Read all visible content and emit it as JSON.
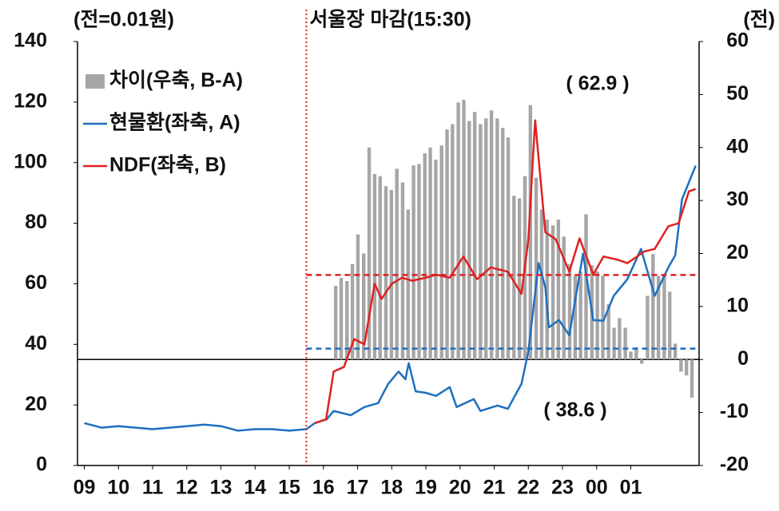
{
  "chart_data": {
    "type": "bar-line",
    "y_unit_label": "(전=0.01원)",
    "y2_unit_label": "(전)",
    "close_annotation": {
      "x": 15.5,
      "label": "서울장 마감(15:30)",
      "color": "#f0954a"
    },
    "xlim": [
      8.8,
      27.0
    ],
    "xticks": [
      {
        "value": 9,
        "label": "09"
      },
      10,
      11,
      12,
      13,
      14,
      15,
      16,
      17,
      18,
      19,
      20,
      21,
      22,
      23,
      {
        "value": 24,
        "label": "00"
      },
      {
        "value": 25,
        "label": "01"
      }
    ],
    "ylim": [
      0,
      140
    ],
    "yticks": [
      0,
      20,
      40,
      60,
      80,
      100,
      120,
      140
    ],
    "y2lim": [
      -20,
      60
    ],
    "y2ticks": [
      -20,
      -10,
      0,
      10,
      20,
      30,
      40,
      50,
      60
    ],
    "reference_lines": [
      {
        "value": 62.9,
        "label": "( 62.9 )",
        "color": "#e02020"
      },
      {
        "value": 38.6,
        "label": "( 38.6 )",
        "color": "#1e6fc0"
      }
    ],
    "series": [
      {
        "name": "차이(우축, B-A)",
        "kind": "bar",
        "axis": "y2",
        "color": "#a6a6a6",
        "x": [
          16.36,
          16.52,
          16.69,
          16.85,
          17.01,
          17.18,
          17.34,
          17.5,
          17.66,
          17.83,
          17.99,
          18.15,
          18.32,
          18.48,
          18.64,
          18.8,
          18.97,
          19.13,
          19.29,
          19.46,
          19.62,
          19.78,
          19.95,
          20.11,
          20.27,
          20.43,
          20.6,
          20.76,
          20.92,
          21.09,
          21.25,
          21.41,
          21.58,
          21.74,
          21.9,
          22.06,
          22.23,
          22.39,
          22.55,
          22.72,
          22.88,
          23.04,
          23.21,
          23.37,
          23.53,
          23.69,
          23.86,
          24.02,
          24.18,
          24.35,
          24.51,
          24.67,
          24.84,
          25.0,
          25.16,
          25.32,
          25.49,
          25.65,
          25.81,
          25.98,
          26.14,
          26.3,
          26.47,
          26.63,
          26.79
        ],
        "values": [
          13.9,
          15.4,
          14.8,
          18,
          23.6,
          20,
          40,
          35,
          34.6,
          32.7,
          32,
          36,
          33.4,
          28.3,
          36.6,
          36.9,
          38.9,
          40,
          37.7,
          40.4,
          43.4,
          44.4,
          48.5,
          49,
          45,
          46.7,
          44.4,
          45.5,
          47,
          45.5,
          43.7,
          41.9,
          30.9,
          30.4,
          34.6,
          48,
          34.3,
          28.3,
          26.4,
          25.3,
          26.4,
          23.2,
          18,
          15.8,
          16.6,
          27.4,
          17.8,
          16.6,
          15.8,
          10.5,
          6,
          7.8,
          6,
          1.5,
          2.3,
          -0.8,
          12,
          19.9,
          15.8,
          15.8,
          12.8,
          3,
          -2.3,
          -3,
          -7.2
        ]
      },
      {
        "name": "현물환(좌축, A)",
        "kind": "line",
        "color": "#1e6fc0",
        "x": [
          9,
          9.5,
          10,
          10.5,
          11,
          11.5,
          12,
          12.5,
          13,
          13.5,
          14,
          14.5,
          15,
          15.5,
          15.75,
          16.1,
          16.3,
          16.8,
          17.2,
          17.6,
          17.9,
          18.2,
          18.4,
          18.5,
          18.7,
          19.0,
          19.3,
          19.7,
          19.9,
          20.4,
          20.6,
          21.1,
          21.4,
          21.8,
          22.0,
          22.3,
          22.5,
          22.6,
          22.9,
          23.2,
          23.6,
          23.9,
          24.2,
          24.5,
          24.9,
          25.3,
          25.7,
          26.1,
          26.3,
          26.5,
          26.9
        ],
        "values": [
          14,
          12.5,
          13,
          12.5,
          12,
          12.5,
          13,
          13.5,
          13,
          11.5,
          12,
          12,
          11.5,
          12,
          14,
          15.3,
          18,
          16.6,
          19.3,
          20.6,
          27,
          31,
          28.5,
          33.8,
          24.5,
          24,
          23,
          25.9,
          19.3,
          21.9,
          18,
          19.8,
          18.7,
          27,
          37.7,
          66.8,
          58.8,
          45.6,
          48,
          43,
          70,
          48,
          47.8,
          56,
          61.5,
          71.5,
          56,
          65.4,
          69.4,
          87.9,
          99
        ]
      },
      {
        "name": "NDF(좌축, B)",
        "kind": "line",
        "color": "#e02020",
        "x": [
          15.75,
          16.08,
          16.3,
          16.6,
          16.9,
          17.2,
          17.5,
          17.7,
          18.0,
          18.3,
          18.6,
          19.0,
          19.3,
          19.7,
          20.1,
          20.5,
          20.9,
          21.4,
          21.8,
          22.0,
          22.2,
          22.5,
          22.8,
          23.2,
          23.5,
          23.9,
          24.2,
          24.6,
          24.9,
          25.4,
          25.7,
          26.1,
          26.4,
          26.7,
          26.9
        ],
        "values": [
          14,
          15.3,
          31,
          32.5,
          41.7,
          40,
          60,
          55,
          60,
          62,
          61,
          62,
          63,
          62,
          69,
          61.5,
          65.4,
          64,
          56.7,
          74.7,
          114,
          77,
          74.7,
          64,
          75,
          63,
          69,
          68,
          66.8,
          70.7,
          71.5,
          79,
          80,
          90.5,
          91.3
        ]
      }
    ]
  }
}
